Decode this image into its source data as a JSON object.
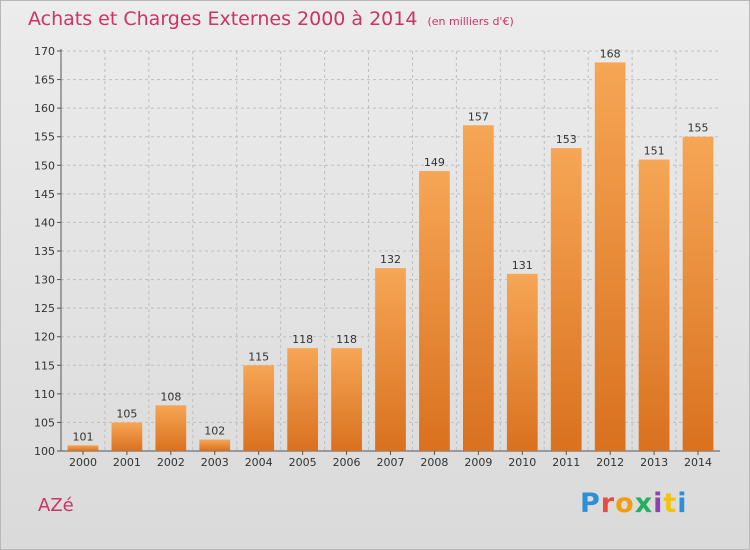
{
  "header": {
    "title": "Achats et Charges Externes 2000 à 2014",
    "subtitle": "(en milliers d'€)"
  },
  "footer": {
    "commune": "AZé",
    "logo_letters": [
      "P",
      "r",
      "o",
      "x",
      "i",
      "t",
      "i"
    ]
  },
  "colors": {
    "title": "#cc3366",
    "bar_top": "#f6a655",
    "bar_bottom": "#d9711f",
    "grid": "#bfbfbf"
  },
  "chart_data": {
    "type": "bar",
    "title": "Achats et Charges Externes 2000 à 2014",
    "subtitle": "(en milliers d'€)",
    "xlabel": "",
    "ylabel": "",
    "categories": [
      "2000",
      "2001",
      "2002",
      "2003",
      "2004",
      "2005",
      "2006",
      "2007",
      "2008",
      "2009",
      "2010",
      "2011",
      "2012",
      "2013",
      "2014"
    ],
    "values": [
      101,
      105,
      108,
      102,
      115,
      118,
      118,
      132,
      149,
      157,
      131,
      153,
      168,
      151,
      155
    ],
    "ylim": [
      100,
      170
    ],
    "yticks": [
      100,
      105,
      110,
      115,
      120,
      125,
      130,
      135,
      140,
      145,
      150,
      155,
      160,
      165,
      170
    ],
    "grid": true,
    "data_labels": true
  }
}
